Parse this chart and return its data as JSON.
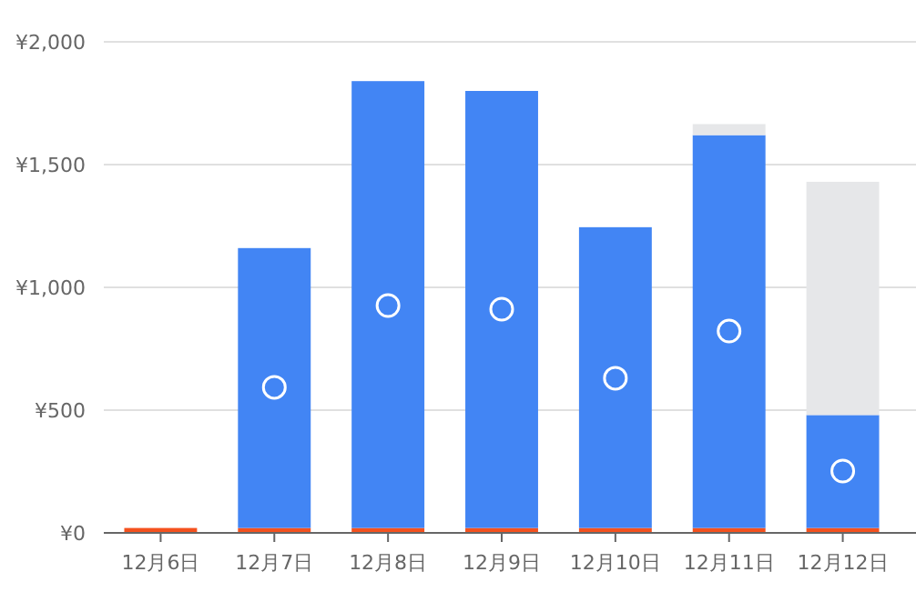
{
  "chart_data": {
    "type": "bar",
    "stacked": true,
    "categories": [
      "12月6日",
      "12月7日",
      "12月8日",
      "12月9日",
      "12月10日",
      "12月11日",
      "12月12日"
    ],
    "series": [
      {
        "color": "#f4511e",
        "values": [
          20,
          20,
          20,
          20,
          20,
          20,
          20
        ]
      },
      {
        "color": "#4285f4",
        "values": [
          null,
          1140,
          1820,
          1780,
          1225,
          1600,
          460
        ]
      },
      {
        "color": "#e6e7e9",
        "values": [
          null,
          null,
          null,
          null,
          null,
          45,
          950
        ]
      },
      {
        "type": "scatter",
        "color": "#ffffff",
        "x": [
          "12月7日",
          "12月8日",
          "12月9日",
          "12月10日",
          "12月11日",
          "12月12日"
        ],
        "values": [
          593,
          926,
          911,
          630,
          822,
          252
        ]
      }
    ],
    "ylim": [
      0,
      2000
    ],
    "yticks": [
      {
        "value": 0,
        "label": "¥0"
      },
      {
        "value": 500,
        "label": "¥500"
      },
      {
        "value": 1000,
        "label": "¥1,000"
      },
      {
        "value": 1500,
        "label": "¥1,500"
      },
      {
        "value": 2000,
        "label": "¥2,000"
      }
    ],
    "grid": "y",
    "marker": "circle"
  }
}
